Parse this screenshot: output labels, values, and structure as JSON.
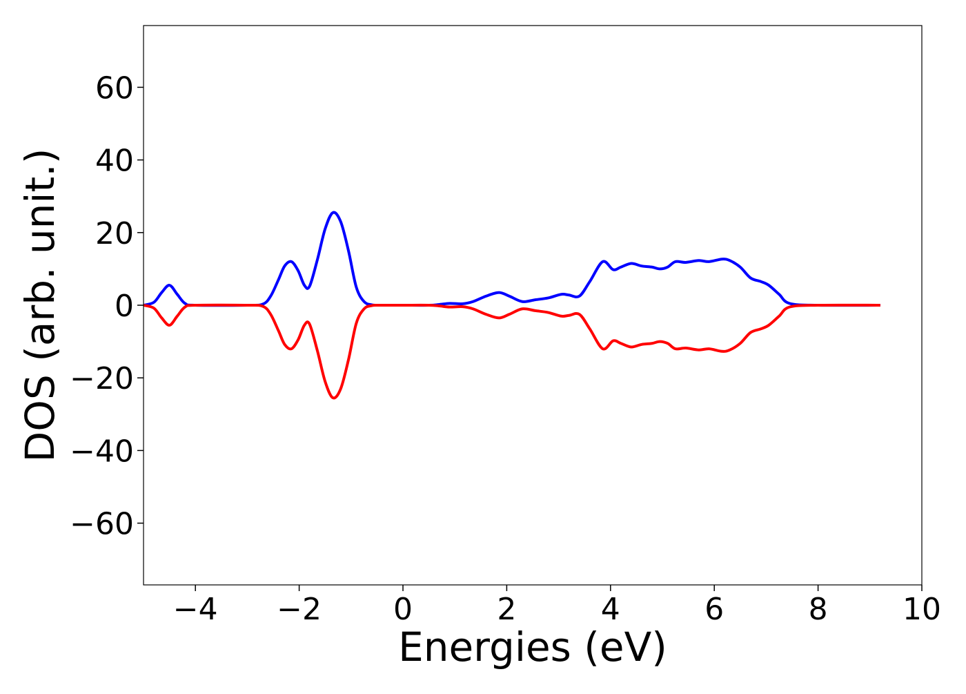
{
  "chart_data": {
    "type": "line",
    "title": "",
    "xlabel": "Energies (eV)",
    "ylabel": "DOS (arb. unit.)",
    "xlim": [
      -5,
      10
    ],
    "ylim": [
      -77,
      77
    ],
    "x_ticks": [
      -4,
      -2,
      0,
      2,
      4,
      6,
      8,
      10
    ],
    "y_ticks": [
      -60,
      -40,
      -20,
      0,
      20,
      40,
      60
    ],
    "x_tick_labels": [
      "−4",
      "−2",
      "0",
      "2",
      "4",
      "6",
      "8",
      "10"
    ],
    "y_tick_labels": [
      "−60",
      "−40",
      "−20",
      "0",
      "20",
      "40",
      "60"
    ],
    "grid": false,
    "series": [
      {
        "color": "#0000ff",
        "x": [
          -5.0,
          -4.8,
          -4.65,
          -4.5,
          -4.35,
          -4.2,
          -4.0,
          -3.0,
          -2.7,
          -2.55,
          -2.4,
          -2.28,
          -2.15,
          -2.02,
          -1.9,
          -1.8,
          -1.65,
          -1.5,
          -1.35,
          -1.2,
          -1.05,
          -0.9,
          -0.75,
          -0.6,
          -0.45,
          0.0,
          0.5,
          0.7,
          0.9,
          1.15,
          1.35,
          1.6,
          1.85,
          2.05,
          2.3,
          2.55,
          2.8,
          3.05,
          3.2,
          3.4,
          3.6,
          3.85,
          4.05,
          4.2,
          4.4,
          4.6,
          4.8,
          4.95,
          5.1,
          5.25,
          5.45,
          5.7,
          5.9,
          6.15,
          6.3,
          6.5,
          6.7,
          6.9,
          7.05,
          7.25,
          7.45,
          8.0,
          9.2
        ],
        "y": [
          0.0,
          0.8,
          3.5,
          5.5,
          3.0,
          0.5,
          0.0,
          0.0,
          0.3,
          2.5,
          7.0,
          10.8,
          12.0,
          9.5,
          5.5,
          5.2,
          12.5,
          21.0,
          25.5,
          23.0,
          15.0,
          5.0,
          1.0,
          0.1,
          0.0,
          0.0,
          0.0,
          0.2,
          0.5,
          0.4,
          1.0,
          2.5,
          3.5,
          2.5,
          1.0,
          1.5,
          2.0,
          3.0,
          2.8,
          2.5,
          6.5,
          12.0,
          9.8,
          10.5,
          11.5,
          10.8,
          10.5,
          10.0,
          10.5,
          12.0,
          11.8,
          12.3,
          12.0,
          12.7,
          12.3,
          10.5,
          7.5,
          6.5,
          5.5,
          3.0,
          0.5,
          0.0,
          0.0
        ]
      },
      {
        "color": "#ff0000",
        "x": [
          -5.0,
          -4.8,
          -4.65,
          -4.5,
          -4.35,
          -4.2,
          -4.0,
          -3.0,
          -2.7,
          -2.55,
          -2.4,
          -2.28,
          -2.15,
          -2.02,
          -1.9,
          -1.8,
          -1.65,
          -1.5,
          -1.35,
          -1.2,
          -1.05,
          -0.9,
          -0.75,
          -0.6,
          -0.45,
          0.0,
          0.5,
          0.7,
          0.9,
          1.15,
          1.35,
          1.6,
          1.85,
          2.05,
          2.3,
          2.55,
          2.8,
          3.05,
          3.2,
          3.4,
          3.6,
          3.85,
          4.05,
          4.2,
          4.4,
          4.6,
          4.8,
          4.95,
          5.1,
          5.25,
          5.45,
          5.7,
          5.9,
          6.15,
          6.3,
          6.5,
          6.7,
          6.9,
          7.05,
          7.25,
          7.45,
          8.0,
          9.2
        ],
        "y": [
          0.0,
          -0.8,
          -3.5,
          -5.5,
          -3.0,
          -0.5,
          0.0,
          0.0,
          -0.3,
          -2.5,
          -7.0,
          -10.8,
          -12.0,
          -9.5,
          -5.5,
          -5.2,
          -12.5,
          -21.0,
          -25.5,
          -23.0,
          -15.0,
          -5.0,
          -1.0,
          -0.1,
          0.0,
          0.0,
          0.0,
          -0.2,
          -0.5,
          -0.4,
          -1.0,
          -2.5,
          -3.5,
          -2.5,
          -1.0,
          -1.5,
          -2.0,
          -3.0,
          -2.8,
          -2.5,
          -6.5,
          -12.0,
          -9.8,
          -10.5,
          -11.5,
          -10.8,
          -10.5,
          -10.0,
          -10.5,
          -12.0,
          -11.8,
          -12.3,
          -12.0,
          -12.7,
          -12.3,
          -10.5,
          -7.5,
          -6.5,
          -5.5,
          -3.0,
          -0.5,
          0.0,
          0.0
        ]
      }
    ]
  }
}
